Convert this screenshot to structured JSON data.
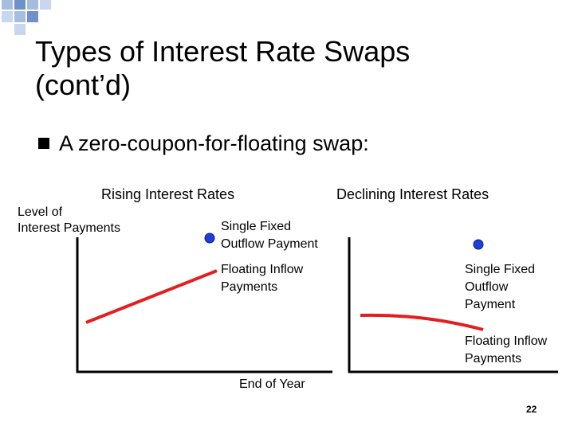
{
  "slide": {
    "title_line1": "Types of Interest Rate Swaps",
    "title_line2": "(cont’d)",
    "bullet": "A zero-coupon-for-floating swap:",
    "page_number": "22"
  },
  "colors": {
    "deco_square": "#a6bde0",
    "deco_accent": "#6f90c8",
    "series_red": "#e41e1e",
    "dot_blue": "#1c3fd8"
  },
  "y_axis_label_line1": "Level of",
  "y_axis_label_line2": "Interest Payments",
  "x_axis_label": "End of Year",
  "chart_data": [
    {
      "type": "line",
      "title": "Rising Interest Rates",
      "series": [
        {
          "name": "Floating Inflow Payments",
          "shape": "rising",
          "x": [
            0,
            1
          ],
          "y": [
            0.25,
            0.62
          ]
        },
        {
          "name": "Single Fixed Outflow Payment",
          "shape": "single point",
          "x": [
            1
          ],
          "y": [
            1.0
          ]
        }
      ],
      "labels": {
        "fixed_line1": "Single Fixed",
        "fixed_line2": "Outflow Payment",
        "floating_line1": "Floating Inflow",
        "floating_line2": "Payments"
      }
    },
    {
      "type": "line",
      "title": "Declining Interest Rates",
      "series": [
        {
          "name": "Floating Inflow Payments",
          "shape": "declining",
          "x": [
            0,
            1
          ],
          "y": [
            0.45,
            0.32
          ]
        },
        {
          "name": "Single Fixed Outflow Payment",
          "shape": "single point",
          "x": [
            1
          ],
          "y": [
            1.0
          ]
        }
      ],
      "labels": {
        "fixed_line1": "Single Fixed",
        "fixed_line2": "Outflow",
        "fixed_line3": "Payment",
        "floating_line1": "Floating Inflow",
        "floating_line2": "Payments"
      }
    }
  ]
}
